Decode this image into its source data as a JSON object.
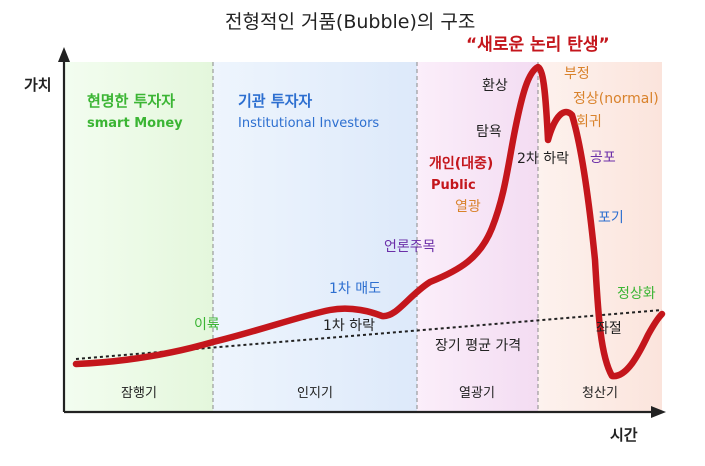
{
  "title": "전형적인 거품(Bubble)의 구조",
  "axis": {
    "y_label": "가치",
    "x_label": "시간"
  },
  "phases": [
    {
      "name": "잠행기",
      "color": "#ecfbe6"
    },
    {
      "name": "인지기",
      "color": "#e7f0fc"
    },
    {
      "name": "열광기",
      "color": "#f8e8f7"
    },
    {
      "name": "청산기",
      "color": "#fcece7"
    }
  ],
  "investors": {
    "smart_ko": "현명한 투자자",
    "smart_en": "smart Money",
    "inst_ko": "기관 투자자",
    "inst_en": "Institutional Investors"
  },
  "headline": "“새로운 논리 탄생”",
  "annotations": {
    "profit": "이륙",
    "sell1": "1차 매도",
    "drop1": "1차 하락",
    "media": "언론주목",
    "retail": "개인(대중)",
    "public": "Public",
    "enthusiasm": "열광",
    "greed": "탐욕",
    "illusion": "환상",
    "drop2": "2차 하락",
    "denial": "부정",
    "normal": "정상(normal)",
    "return": "회귀",
    "fear": "공포",
    "giveup": "포기",
    "despair": "좌절",
    "normalize": "정상화",
    "longterm": "장기 평균 가격"
  },
  "colors": {
    "curve": "#c4161c",
    "green": "#3bb534",
    "blue": "#2d6fd0",
    "purple": "#6b2fa8",
    "orange": "#d9822b",
    "red": "#c4161c"
  }
}
